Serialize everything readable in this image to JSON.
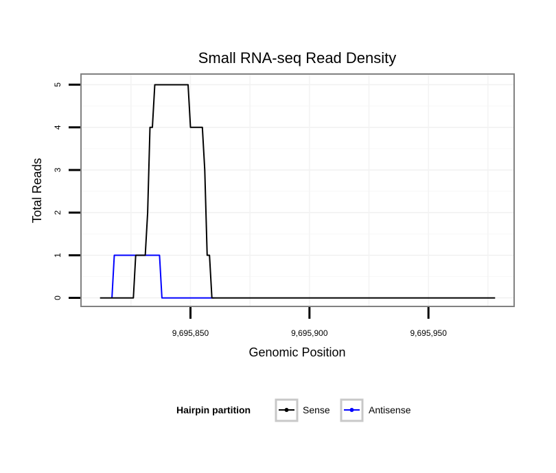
{
  "chart_data": {
    "type": "line",
    "title": "Small RNA-seq Read Density",
    "xlabel": "Genomic Position",
    "ylabel": "Total Reads",
    "xlim": [
      9695804,
      9695986
    ],
    "ylim": [
      -0.2,
      5.25
    ],
    "x_ticks": [
      9695850,
      9695900,
      9695950
    ],
    "x_tick_labels": [
      "9,695,850",
      "9,695,900",
      "9,695,950"
    ],
    "y_ticks": [
      0,
      1,
      2,
      3,
      4,
      5
    ],
    "y_tick_labels": [
      "0",
      "1",
      "2",
      "3",
      "4",
      "5"
    ],
    "grid": true,
    "legend": {
      "title": "Hairpin partition",
      "position": "bottom"
    },
    "series": [
      {
        "name": "Sense",
        "color": "#000000",
        "x": [
          9695812,
          9695826,
          9695827,
          9695831,
          9695832,
          9695833,
          9695834,
          9695835,
          9695849,
          9695850,
          9695851,
          9695855,
          9695856,
          9695857,
          9695858,
          9695859,
          9695860,
          9695978
        ],
        "y": [
          0,
          0,
          1,
          1,
          2,
          4,
          4,
          5,
          5,
          4,
          4,
          4,
          3,
          1,
          1,
          0,
          0,
          0
        ]
      },
      {
        "name": "Antisense",
        "color": "#0000ff",
        "x": [
          9695817,
          9695818,
          9695837,
          9695838,
          9695860
        ],
        "y": [
          0,
          1,
          1,
          0,
          0
        ]
      }
    ]
  }
}
